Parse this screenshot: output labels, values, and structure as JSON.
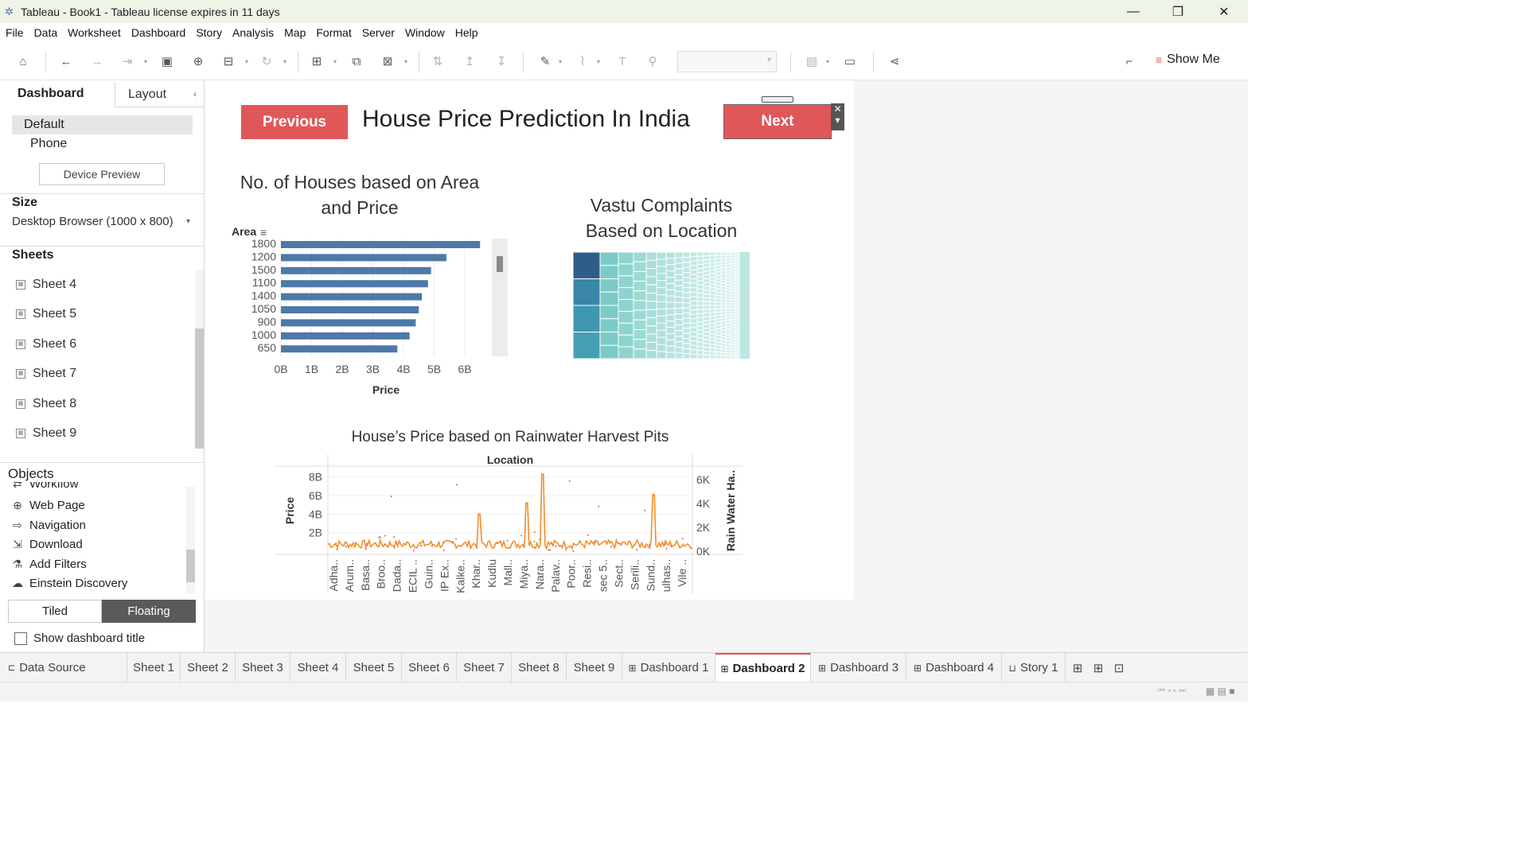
{
  "window": {
    "title": "Tableau - Book1 - Tableau license expires in 11 days",
    "controls": {
      "minimize": "—",
      "restore": "❐",
      "close": "✕"
    }
  },
  "menu": [
    "File",
    "Data",
    "Worksheet",
    "Dashboard",
    "Story",
    "Analysis",
    "Map",
    "Format",
    "Server",
    "Window",
    "Help"
  ],
  "toolbar": {
    "show_me": "Show Me"
  },
  "left_pane": {
    "tab_dashboard": "Dashboard",
    "tab_layout": "Layout",
    "collapse": "‹",
    "device_default": "Default",
    "device_phone": "Phone",
    "device_preview": "Device Preview",
    "size_label": "Size",
    "size_value": "Desktop Browser (1000 x 800)",
    "sheets_label": "Sheets",
    "sheets": [
      "Sheet 4",
      "Sheet 5",
      "Sheet 6",
      "Sheet 7",
      "Sheet 8",
      "Sheet 9"
    ],
    "objects_label": "Objects",
    "objects": [
      "Workflow",
      "Web Page",
      "Navigation",
      "Download",
      "Add Filters",
      "Einstein Discovery"
    ],
    "tiled": "Tiled",
    "floating": "Floating",
    "show_title": "Show dashboard title"
  },
  "dashboard": {
    "title": "House Price Prediction In India",
    "prev_button": "Previous",
    "next_button": "Next",
    "colors": {
      "button": "#e05759",
      "bar": "#4e79a7",
      "line": "#f28e2b",
      "dots": "#e15759"
    }
  },
  "chart_data": [
    {
      "type": "bar",
      "title_line1": "No. of Houses  based on Area",
      "title_line2": "and Price",
      "ylabel": "Area",
      "xlabel": "Price",
      "categories": [
        "1800",
        "1200",
        "1500",
        "1100",
        "1400",
        "1050",
        "900",
        "1000",
        "650"
      ],
      "values": [
        6.5,
        5.4,
        4.9,
        4.8,
        4.6,
        4.5,
        4.4,
        4.2,
        3.8
      ],
      "xticks": [
        "0B",
        "1B",
        "2B",
        "3B",
        "4B",
        "5B",
        "6B"
      ],
      "xlim": [
        0,
        7
      ],
      "grid": true
    },
    {
      "type": "heatmap",
      "title_line1": "Vastu Complaints",
      "title_line2": "Based on Location",
      "grid": true
    },
    {
      "type": "line",
      "title": "House’s Price based on Rainwater Harvest Pits",
      "header": "Location",
      "ylabel_left": "Price",
      "ylabel_right": "Rain Water Ha..",
      "yticks_left": [
        "2B",
        "4B",
        "6B",
        "8B"
      ],
      "yticks_right": [
        "0K",
        "2K",
        "4K",
        "6K"
      ],
      "ylim_left": [
        0,
        9
      ],
      "ylim_right": [
        0,
        7
      ],
      "categories": [
        "Adha..",
        "Arum..",
        "Basa..",
        "Broo..",
        "Dada..",
        "ECIL ..",
        "Guin..",
        "IP Ex..",
        "Kalke..",
        "Khar..",
        "Kudlu",
        "Mall..",
        "Miya..",
        "Nara..",
        "Palav..",
        "Poor..",
        "Resi..",
        "sec 5..",
        "Sect..",
        "Serili..",
        "Sund..",
        "ulhas..",
        "Vile .."
      ],
      "peaks_price": [
        {
          "category": "Khar..",
          "value": 4.0
        },
        {
          "category": "Miya..",
          "value": 5.2
        },
        {
          "category": "Nara..",
          "value": 8.3
        },
        {
          "category": "Sund..",
          "value": 6.1
        }
      ],
      "grid": true
    }
  ],
  "bottom_tabs": [
    "Data Source",
    "Sheet 1",
    "Sheet 2",
    "Sheet 3",
    "Sheet 4",
    "Sheet 5",
    "Sheet 6",
    "Sheet 7",
    "Sheet 8",
    "Sheet 9",
    "Dashboard 1",
    "Dashboard 2",
    "Dashboard 3",
    "Dashboard 4",
    "Story 1"
  ],
  "active_tab": "Dashboard 2"
}
